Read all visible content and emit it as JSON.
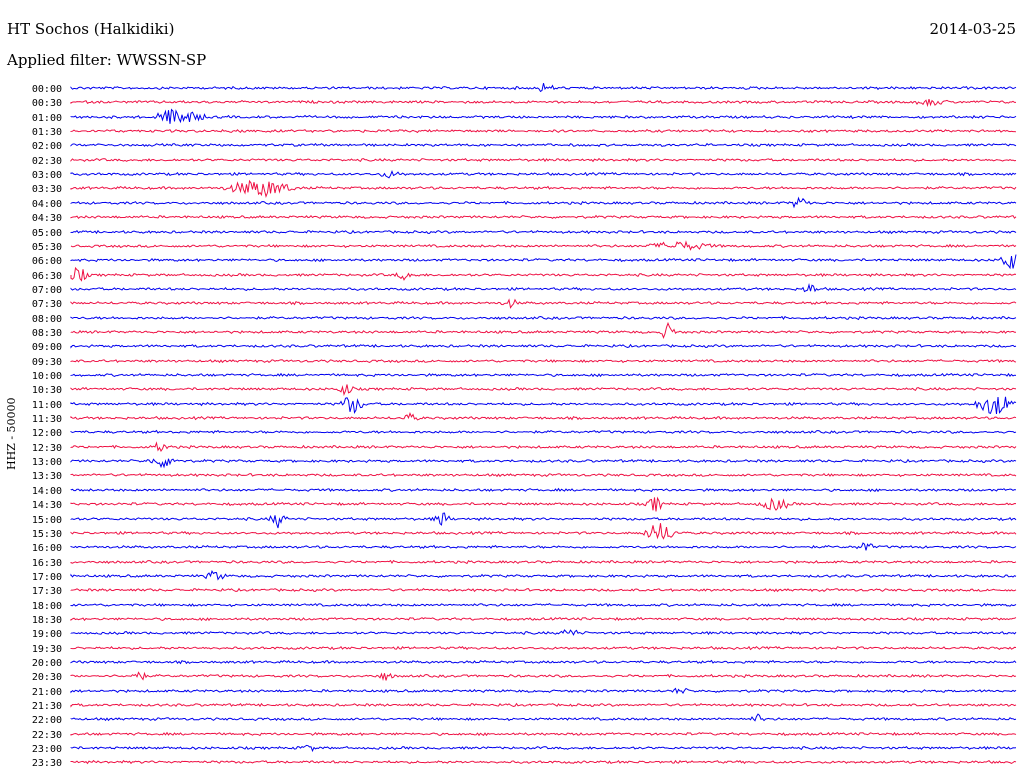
{
  "header": {
    "station": "HT Sochos (Halkidiki)",
    "date": "2014-03-25",
    "filter": "Applied filter: WWSSN-SP"
  },
  "chart_data": {
    "type": "line",
    "ylabel": "HHZ - 50000",
    "colors": [
      "#0000ee",
      "#ee1144"
    ],
    "rows": [
      "00:00",
      "00:30",
      "01:00",
      "01:30",
      "02:00",
      "02:30",
      "03:00",
      "03:30",
      "04:00",
      "04:30",
      "05:00",
      "05:30",
      "06:00",
      "06:30",
      "07:00",
      "07:30",
      "08:00",
      "08:30",
      "09:00",
      "09:30",
      "10:00",
      "10:30",
      "11:00",
      "11:30",
      "12:00",
      "12:30",
      "13:00",
      "13:30",
      "14:00",
      "14:30",
      "15:00",
      "15:30",
      "16:00",
      "16:30",
      "17:00",
      "17:30",
      "18:00",
      "18:30",
      "19:00",
      "19:30",
      "20:00",
      "20:30",
      "21:00",
      "21:30",
      "22:00",
      "22:30",
      "23:00",
      "23:30"
    ]
  }
}
